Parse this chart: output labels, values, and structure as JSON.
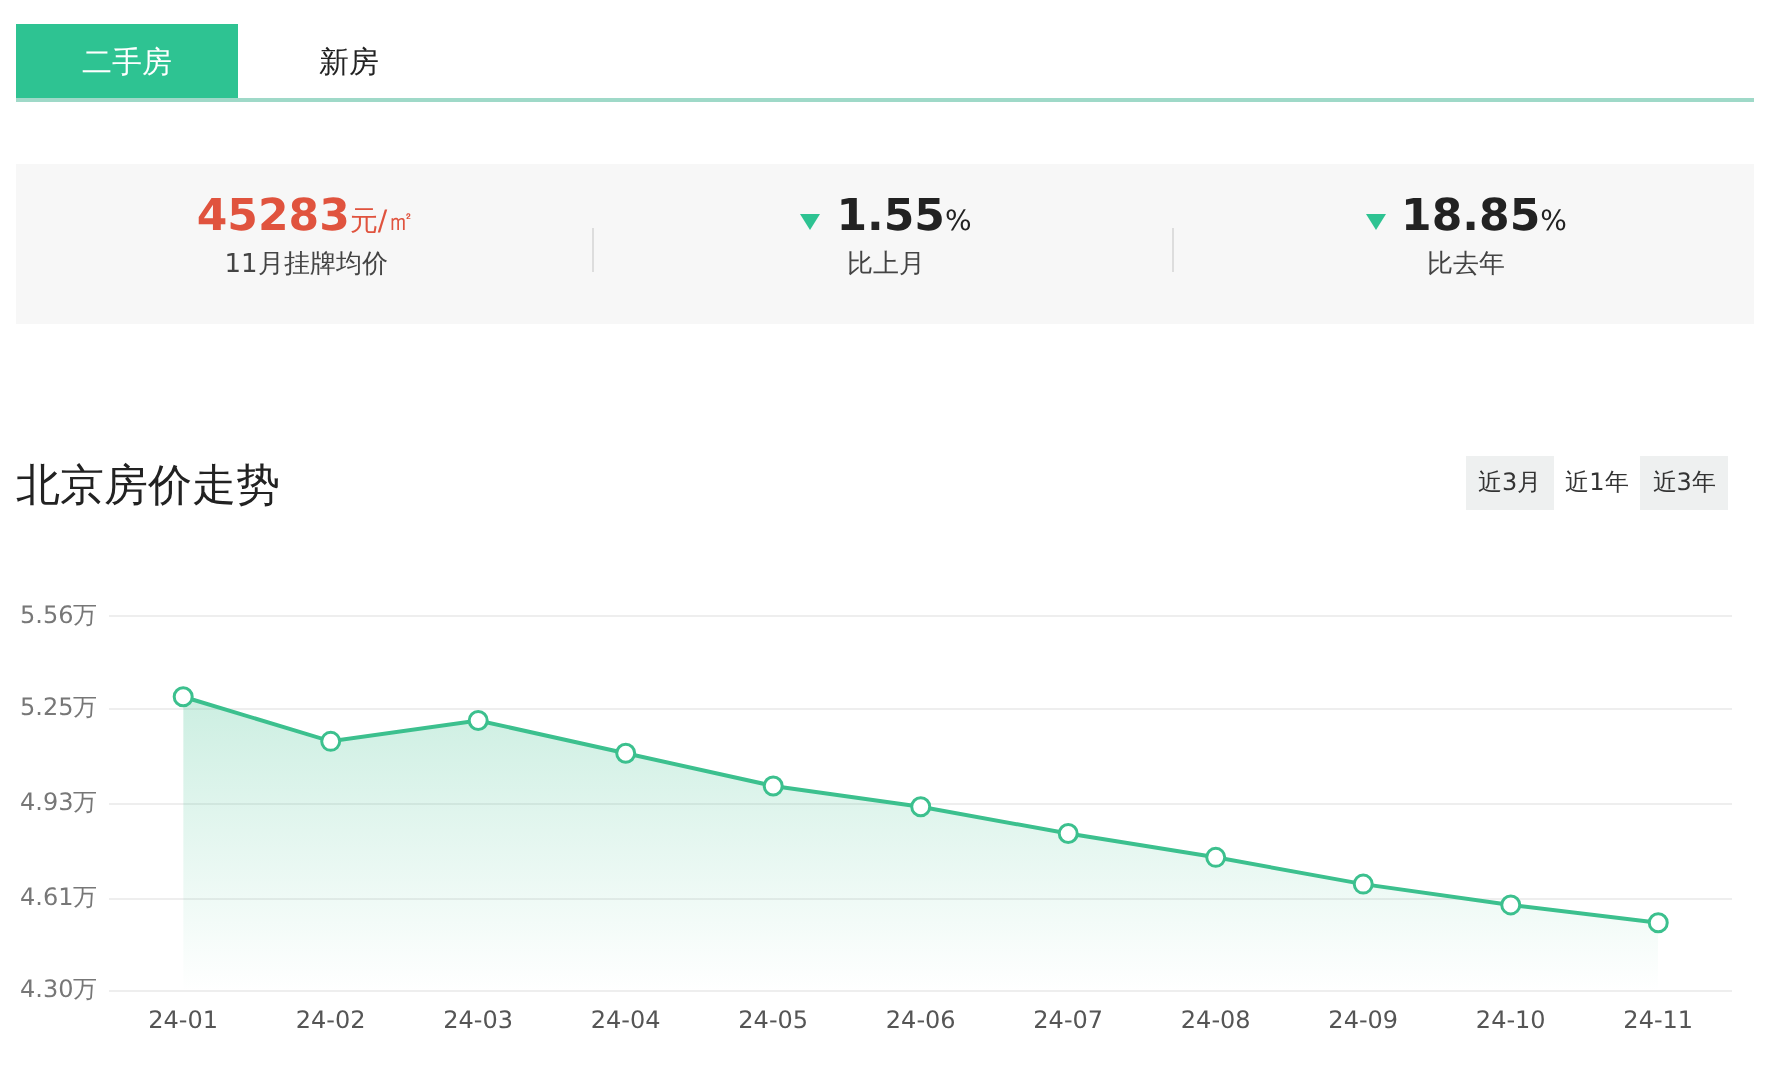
{
  "chart_data": {
    "type": "area",
    "title": "北京房价走势",
    "categories": [
      "24-01",
      "24-02",
      "24-03",
      "24-04",
      "24-05",
      "24-06",
      "24-07",
      "24-08",
      "24-09",
      "24-10",
      "24-11"
    ],
    "values": [
      5.29,
      5.14,
      5.21,
      5.1,
      4.99,
      4.92,
      4.83,
      4.75,
      4.66,
      4.59,
      4.53
    ],
    "color": "#3cc08e",
    "ylim": [
      4.3,
      5.56
    ],
    "yticks": [
      {
        "value": 4.3,
        "label": "4.30万"
      },
      {
        "value": 4.61,
        "label": "4.61万"
      },
      {
        "value": 4.93,
        "label": "4.93万"
      },
      {
        "value": 5.25,
        "label": "5.25万"
      },
      {
        "value": 5.56,
        "label": "5.56万"
      }
    ],
    "grid": "y",
    "marker": "circle",
    "legend": false,
    "annotations": [
      "二手房",
      "新房",
      "45283",
      "元/㎡",
      "11月挂牌均价",
      "1.55",
      "%",
      "比上月",
      "18.85",
      "%",
      "比去年",
      "近3月",
      "近1年",
      "近3年"
    ]
  }
}
